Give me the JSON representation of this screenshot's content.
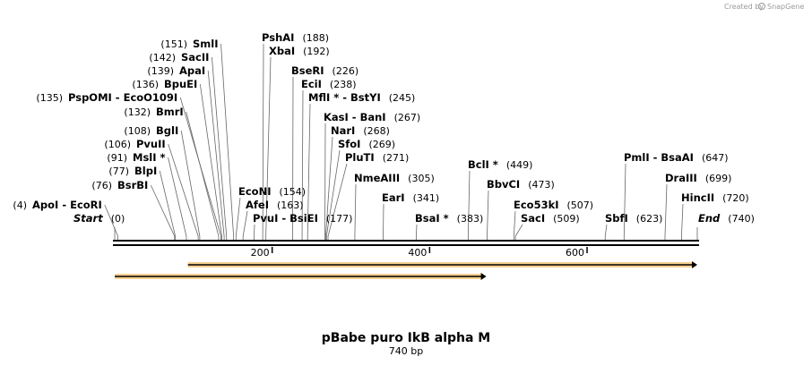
{
  "branding": {
    "created_by": "Created by",
    "product": "SnapGene"
  },
  "map": {
    "title": "pBabe puro IkB alpha M",
    "length_label": "740 bp",
    "length": 740
  },
  "ticks": [
    {
      "value": 200,
      "label": "200"
    },
    {
      "value": 400,
      "label": "400"
    },
    {
      "value": 600,
      "label": "600"
    }
  ],
  "sites": [
    {
      "name": "Start",
      "pos": 0,
      "pos_label": "(0)",
      "italic": true
    },
    {
      "name": "ApoI - EcoRI",
      "pos": 4,
      "pos_label": "(4)"
    },
    {
      "name": "BsrBI",
      "pos": 76,
      "pos_label": "(76)"
    },
    {
      "name": "BlpI",
      "pos": 77,
      "pos_label": "(77)"
    },
    {
      "name": "MslI *",
      "pos": 91,
      "pos_label": "(91)"
    },
    {
      "name": "PvuII",
      "pos": 106,
      "pos_label": "(106)"
    },
    {
      "name": "BglI",
      "pos": 108,
      "pos_label": "(108)"
    },
    {
      "name": "BmrI",
      "pos": 132,
      "pos_label": "(132)"
    },
    {
      "name": "PspOMI - EcoO109I",
      "pos": 135,
      "pos_label": "(135)"
    },
    {
      "name": "BpuEI",
      "pos": 136,
      "pos_label": "(136)"
    },
    {
      "name": "ApaI",
      "pos": 139,
      "pos_label": "(139)"
    },
    {
      "name": "SacII",
      "pos": 142,
      "pos_label": "(142)"
    },
    {
      "name": "SmlI",
      "pos": 151,
      "pos_label": "(151)"
    },
    {
      "name": "EcoNI",
      "pos": 154,
      "pos_label": "(154)"
    },
    {
      "name": "AfeI",
      "pos": 163,
      "pos_label": "(163)"
    },
    {
      "name": "PvuI - BsiEI",
      "pos": 177,
      "pos_label": "(177)"
    },
    {
      "name": "PshAI",
      "pos": 188,
      "pos_label": "(188)"
    },
    {
      "name": "XbaI",
      "pos": 192,
      "pos_label": "(192)"
    },
    {
      "name": "BseRI",
      "pos": 226,
      "pos_label": "(226)"
    },
    {
      "name": "EciI",
      "pos": 238,
      "pos_label": "(238)"
    },
    {
      "name": "MflI * - BstYI",
      "pos": 245,
      "pos_label": "(245)"
    },
    {
      "name": "KasI - BanI",
      "pos": 267,
      "pos_label": "(267)"
    },
    {
      "name": "NarI",
      "pos": 268,
      "pos_label": "(268)"
    },
    {
      "name": "SfoI",
      "pos": 269,
      "pos_label": "(269)"
    },
    {
      "name": "PluTI",
      "pos": 271,
      "pos_label": "(271)"
    },
    {
      "name": "NmeAIII",
      "pos": 305,
      "pos_label": "(305)"
    },
    {
      "name": "EarI",
      "pos": 341,
      "pos_label": "(341)"
    },
    {
      "name": "BsaI *",
      "pos": 383,
      "pos_label": "(383)"
    },
    {
      "name": "BclI *",
      "pos": 449,
      "pos_label": "(449)"
    },
    {
      "name": "BbvCI",
      "pos": 473,
      "pos_label": "(473)"
    },
    {
      "name": "Eco53kI",
      "pos": 507,
      "pos_label": "(507)"
    },
    {
      "name": "SacI",
      "pos": 509,
      "pos_label": "(509)"
    },
    {
      "name": "SbfI",
      "pos": 623,
      "pos_label": "(623)"
    },
    {
      "name": "PmlI - BsaAI",
      "pos": 647,
      "pos_label": "(647)"
    },
    {
      "name": "DraIII",
      "pos": 699,
      "pos_label": "(699)"
    },
    {
      "name": "HincII",
      "pos": 720,
      "pos_label": "(720)"
    },
    {
      "name": "End",
      "pos": 740,
      "pos_label": "(740)",
      "italic": true
    }
  ],
  "features": [
    {
      "name": "feature-arrow-upper",
      "start": 93,
      "end": 740,
      "color": "#f2a93b"
    },
    {
      "name": "feature-arrow-lower",
      "start": 0,
      "end": 472,
      "color": "#f2a93b"
    }
  ]
}
